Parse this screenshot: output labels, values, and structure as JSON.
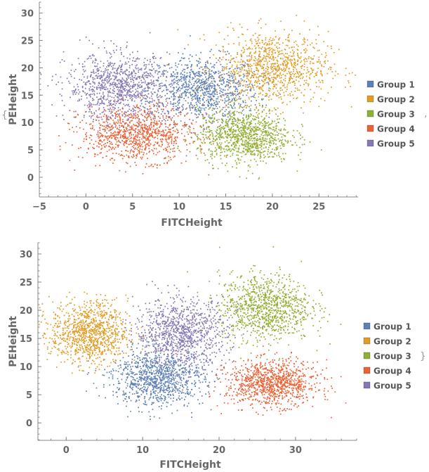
{
  "chart_data": [
    {
      "type": "scatter",
      "xlabel": "FITCHeight",
      "ylabel": "PEHeight",
      "xlim": [
        -5,
        29.2
      ],
      "ylim": [
        -3.6,
        32
      ],
      "xticks": [
        -5,
        0,
        5,
        10,
        15,
        20,
        25
      ],
      "yticks": [
        0,
        5,
        10,
        15,
        20,
        25,
        30
      ],
      "grid": false,
      "legend_position": "right",
      "trailing_glyph": ",",
      "leading_glyph": "{",
      "series": [
        {
          "name": "Group 1",
          "color": "#5e81b5",
          "center": [
            12.5,
            16
          ],
          "spread": [
            3,
            3
          ],
          "count": 1000
        },
        {
          "name": "Group 2",
          "color": "#e19c24",
          "center": [
            20,
            20
          ],
          "spread": [
            3,
            3.3
          ],
          "count": 1000
        },
        {
          "name": "Group 3",
          "color": "#8fb032",
          "center": [
            17,
            7.5
          ],
          "spread": [
            2.5,
            2.5
          ],
          "count": 1000
        },
        {
          "name": "Group 4",
          "color": "#eb6235",
          "center": [
            5.5,
            8
          ],
          "spread": [
            3,
            2.5
          ],
          "count": 1000
        },
        {
          "name": "Group 5",
          "color": "#8778b3",
          "center": [
            3.5,
            16.5
          ],
          "spread": [
            2.8,
            3
          ],
          "count": 1000
        }
      ]
    },
    {
      "type": "scatter",
      "xlabel": "FITCHeight",
      "ylabel": "PEHeight",
      "xlim": [
        -3.7,
        38
      ],
      "ylim": [
        -3.1,
        32
      ],
      "xticks": [
        0,
        10,
        20,
        30
      ],
      "yticks": [
        0,
        5,
        10,
        15,
        20,
        25,
        30
      ],
      "grid": false,
      "legend_position": "right",
      "trailing_glyph": "}",
      "series": [
        {
          "name": "Group 1",
          "color": "#5e81b5",
          "center": [
            12,
            8
          ],
          "spread": [
            3,
            2.5
          ],
          "count": 1000
        },
        {
          "name": "Group 2",
          "color": "#e19c24",
          "center": [
            3,
            16
          ],
          "spread": [
            2.5,
            2.8
          ],
          "count": 1000
        },
        {
          "name": "Group 3",
          "color": "#8fb032",
          "center": [
            26,
            20.5
          ],
          "spread": [
            3,
            3
          ],
          "count": 1000
        },
        {
          "name": "Group 4",
          "color": "#eb6235",
          "center": [
            27,
            7
          ],
          "spread": [
            3,
            2
          ],
          "count": 1000
        },
        {
          "name": "Group 5",
          "color": "#8778b3",
          "center": [
            15,
            16
          ],
          "spread": [
            3,
            3
          ],
          "count": 1000
        }
      ]
    }
  ]
}
